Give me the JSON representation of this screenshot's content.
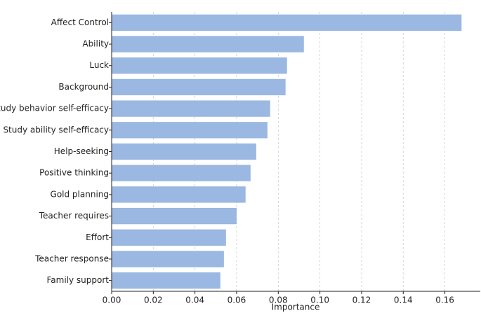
{
  "chart_data": {
    "type": "barh",
    "xlabel": "Importance",
    "categories": [
      "Affect Control",
      "Ability",
      "Luck",
      "Background",
      "Study behavior self-efficacy",
      "Study ability self-efficacy",
      "Help-seeking",
      "Positive thinking",
      "Gold planning",
      "Teacher requires",
      "Effort",
      "Teacher response",
      "Family support"
    ],
    "values": [
      0.168,
      0.0923,
      0.0842,
      0.0835,
      0.0761,
      0.0748,
      0.0694,
      0.0667,
      0.0643,
      0.06,
      0.0549,
      0.0539,
      0.0522
    ],
    "color": "#9ab8e1",
    "xlim": [
      0,
      0.177
    ],
    "xticks": [
      {
        "value": 0,
        "label": "0.00"
      },
      {
        "value": 0.02,
        "label": "0.02"
      },
      {
        "value": 0.04,
        "label": "0.04"
      },
      {
        "value": 0.06,
        "label": "0.06"
      },
      {
        "value": 0.08,
        "label": "0.08"
      },
      {
        "value": 0.1,
        "label": "0.10"
      },
      {
        "value": 0.12,
        "label": "0.12"
      },
      {
        "value": 0.14,
        "label": "0.14"
      },
      {
        "value": 0.16,
        "label": "0.16"
      }
    ],
    "grid": true
  }
}
